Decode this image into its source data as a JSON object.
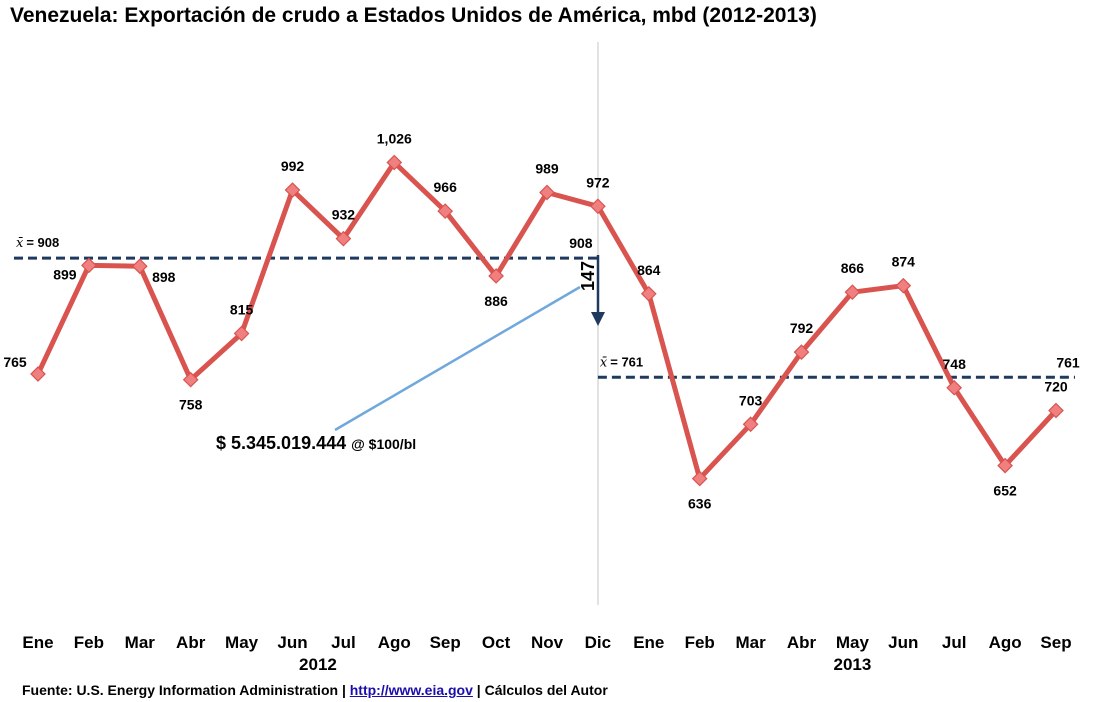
{
  "chart_data": {
    "type": "line",
    "title": "Venezuela: Exportación de crudo a Estados Unidos de América, mbd (2012-2013)",
    "categories": [
      "Ene",
      "Feb",
      "Mar",
      "Abr",
      "May",
      "Jun",
      "Jul",
      "Ago",
      "Sep",
      "Oct",
      "Nov",
      "Dic",
      "Ene",
      "Feb",
      "Mar",
      "Abr",
      "May",
      "Jun",
      "Jul",
      "Ago",
      "Sep"
    ],
    "data_labels": [
      "765",
      "899",
      "898",
      "758",
      "815",
      "992",
      "932",
      "1,026",
      "966",
      "886",
      "989",
      "972",
      "864",
      "636",
      "703",
      "792",
      "866",
      "874",
      "748",
      "652",
      "720"
    ],
    "values": [
      765,
      899,
      898,
      758,
      815,
      992,
      932,
      1026,
      966,
      886,
      989,
      972,
      864,
      636,
      703,
      792,
      866,
      874,
      748,
      652,
      720
    ],
    "year_groups": [
      {
        "label": "2012",
        "start": 0,
        "end": 11
      },
      {
        "label": "2013",
        "start": 12,
        "end": 20
      }
    ],
    "means": [
      {
        "label": "= 908",
        "value": 908,
        "end_label": "908",
        "start": 0,
        "end": 11
      },
      {
        "label": "= 761",
        "value": 761,
        "end_label": "761",
        "start": 11,
        "end": 20
      }
    ],
    "mean_symbol": "x̄",
    "drop_label": "147",
    "annotation": {
      "amount": "$ 5.345.019.444",
      "rate": "@ $100/bl"
    },
    "ylim": [
      480,
      1150
    ],
    "series_color": "#d9534f",
    "marker_color": "#f08080",
    "mean_color": "#1f3a5f"
  },
  "footer": {
    "source": "Fuente:  U.S. Energy Information Administration  |",
    "link": "http://www.eia.gov",
    "author": "| Cálculos del Autor"
  }
}
